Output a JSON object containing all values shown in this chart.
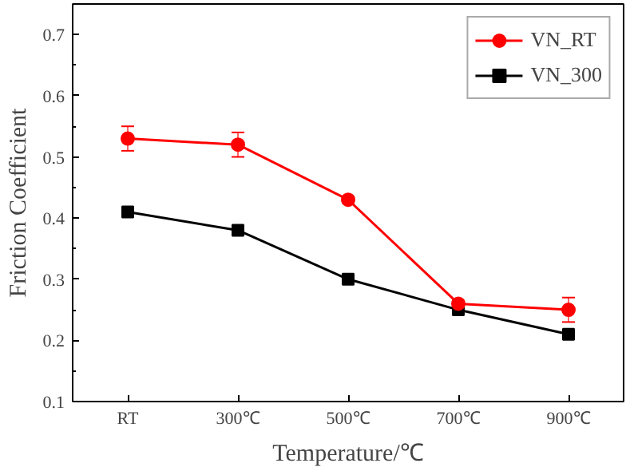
{
  "chart_data": {
    "type": "line",
    "xlabel": "Temperature/℃",
    "ylabel": "Friction Coefficient",
    "categories": [
      "RT",
      "300℃",
      "500℃",
      "700℃",
      "900℃"
    ],
    "series": [
      {
        "name": "VN_RT",
        "color": "#ff0000",
        "marker": "circle",
        "values": [
          0.53,
          0.52,
          0.43,
          0.26,
          0.25
        ],
        "errors": [
          0.02,
          0.02,
          0.005,
          0.005,
          0.02
        ]
      },
      {
        "name": "VN_300",
        "color": "#000000",
        "marker": "square",
        "values": [
          0.41,
          0.38,
          0.3,
          0.25,
          0.21
        ],
        "errors": [
          0.005,
          0.005,
          0.005,
          0.005,
          0.005
        ]
      }
    ],
    "ylim": [
      0.1,
      0.75
    ],
    "yticks": [
      0.1,
      0.2,
      0.3,
      0.4,
      0.5,
      0.6,
      0.7
    ],
    "grid": false,
    "legend": "top right",
    "line_style": "solid"
  }
}
